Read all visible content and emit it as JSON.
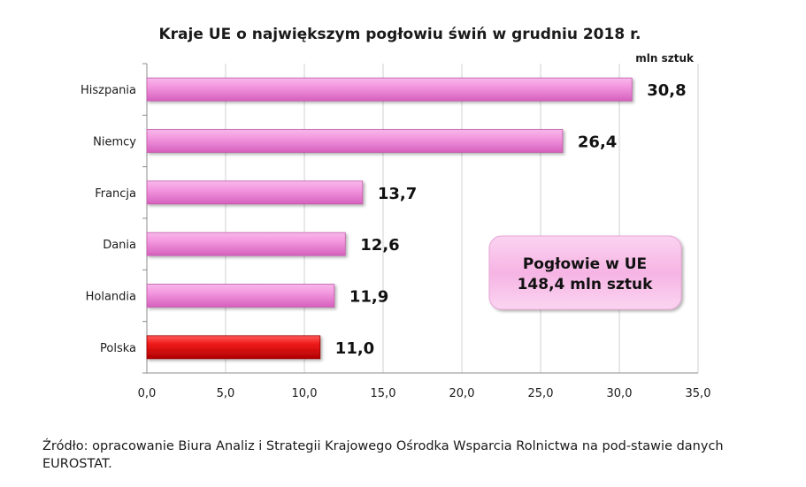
{
  "chart_data": {
    "type": "bar",
    "orientation": "horizontal",
    "title": "Kraje UE o największym pogłowiu świń w grudniu 2018 r.",
    "unit_label": "mln sztuk",
    "categories": [
      "Hiszpania",
      "Niemcy",
      "Francja",
      "Dania",
      "Holandia",
      "Polska"
    ],
    "values": [
      30.8,
      26.4,
      13.7,
      12.6,
      11.9,
      11.0
    ],
    "value_labels": [
      "30,8",
      "26,4",
      "13,7",
      "12,6",
      "11,9",
      "11,0"
    ],
    "xlim": [
      0,
      35
    ],
    "x_ticks": [
      0,
      5,
      10,
      15,
      20,
      25,
      30,
      35
    ],
    "x_tick_labels": [
      "0,0",
      "5,0",
      "10,0",
      "15,0",
      "20,0",
      "25,0",
      "30,0",
      "35,0"
    ],
    "grid": "vertical",
    "bar_color": "#f08ad8",
    "highlight_color": "#e8141e",
    "highlight_category": "Polska",
    "annotation_box": {
      "line1": "Pogłowie  w UE",
      "line2": "148,4 mln sztuk",
      "color": "#f7b6e6"
    }
  },
  "source": "Źródło: opracowanie Biura Analiz i Strategii Krajowego Ośrodka Wsparcia Rolnictwa na pod-stawie danych EUROSTAT."
}
